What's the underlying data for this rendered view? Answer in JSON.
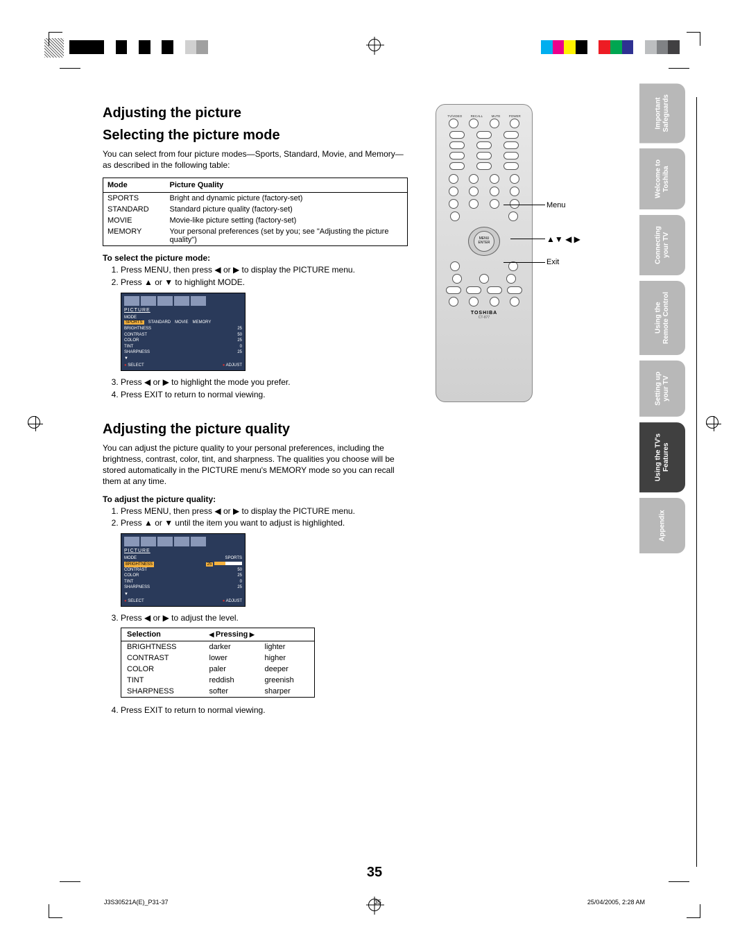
{
  "page_number": "35",
  "footer": {
    "left": "J3S30521A(E)_P31-37",
    "mid": "35",
    "right": "25/04/2005, 2:28 AM"
  },
  "headings": {
    "h1a": "Adjusting the picture",
    "h1b": "Selecting the picture mode",
    "h2": "Adjusting the picture quality"
  },
  "intro1": "You can select from four picture modes—Sports, Standard, Movie, and Memory—as described in the following table:",
  "mode_table": {
    "headers": [
      "Mode",
      "Picture Quality"
    ],
    "rows": [
      [
        "SPORTS",
        "Bright and dynamic picture (factory-set)"
      ],
      [
        "STANDARD",
        "Standard picture quality (factory-set)"
      ],
      [
        "MOVIE",
        "Movie-like picture setting (factory-set)"
      ],
      [
        "MEMORY",
        "Your personal preferences (set by you; see \"Adjusting the picture quality\")"
      ]
    ]
  },
  "sub1": "To select the picture mode:",
  "steps1": [
    "Press MENU, then press ◀ or ▶ to display the PICTURE menu.",
    "Press ▲ or ▼ to highlight MODE.",
    "Press ◀ or ▶ to highlight the mode you prefer.",
    "Press EXIT to return to normal viewing."
  ],
  "osd1": {
    "title": "PICTURE",
    "modes": [
      "SPORTS",
      "STANDARD",
      "MOVIE",
      "MEMORY"
    ],
    "rows": [
      [
        "MODE",
        ""
      ],
      [
        "BRIGHTNESS",
        "25"
      ],
      [
        "CONTRAST",
        "50"
      ],
      [
        "COLOR",
        "25"
      ],
      [
        "TINT",
        "0"
      ],
      [
        "SHARPNESS",
        "25"
      ]
    ],
    "foot": [
      "SELECT",
      "ADJUST"
    ]
  },
  "intro2": "You can adjust the picture quality to your personal preferences, including the brightness, contrast, color, tint, and sharpness. The qualities you choose will be stored automatically in the PICTURE menu's MEMORY mode so you can recall them at any time.",
  "sub2": "To adjust the picture quality:",
  "steps2": [
    "Press MENU, then press ◀ or ▶ to display the PICTURE menu.",
    "Press ▲ or ▼ until the item you want to adjust is highlighted.",
    "Press ◀ or ▶ to adjust the level.",
    "Press EXIT to return to normal viewing."
  ],
  "osd2": {
    "title": "PICTURE",
    "mode_value": "SPORTS",
    "rows": [
      [
        "MODE",
        "SPORTS"
      ],
      [
        "BRIGHTNESS",
        "25"
      ],
      [
        "CONTRAST",
        "50"
      ],
      [
        "COLOR",
        "25"
      ],
      [
        "TINT",
        "0"
      ],
      [
        "SHARPNESS",
        "25"
      ]
    ],
    "foot": [
      "SELECT",
      "ADJUST"
    ],
    "highlight": 1
  },
  "adjust_table": {
    "headers": [
      "Selection",
      "Pressing"
    ],
    "rows": [
      [
        "BRIGHTNESS",
        "darker",
        "lighter"
      ],
      [
        "CONTRAST",
        "lower",
        "higher"
      ],
      [
        "COLOR",
        "paler",
        "deeper"
      ],
      [
        "TINT",
        "reddish",
        "greenish"
      ],
      [
        "SHARPNESS",
        "softer",
        "sharper"
      ]
    ]
  },
  "remote": {
    "brand": "TOSHIBA",
    "model": "CT-877",
    "callouts": {
      "menu": "Menu",
      "arrows": "▲▼ ◀ ▶",
      "exit": "Exit"
    },
    "top_labels": [
      "TV/VIDEO",
      "RECALL",
      "MUTE",
      "POWER"
    ],
    "numbers": [
      "1",
      "2",
      "3",
      "4",
      "5•",
      "6",
      "7",
      "8",
      "9",
      "100",
      "0"
    ],
    "ctrl_center": "MENU ENTER CH RTN"
  },
  "tabs": [
    {
      "l1": "Important",
      "l2": "Safeguards",
      "active": false
    },
    {
      "l1": "Welcome to",
      "l2": "Toshiba",
      "active": false
    },
    {
      "l1": "Connecting",
      "l2": "your TV",
      "active": false
    },
    {
      "l1": "Using the",
      "l2": "Remote Control",
      "active": false
    },
    {
      "l1": "Setting up",
      "l2": "your TV",
      "active": false
    },
    {
      "l1": "Using the TV's",
      "l2": "Features",
      "active": true
    },
    {
      "l1": "Appendix",
      "l2": "",
      "active": false
    }
  ],
  "reg_colors_left": [
    "#000",
    "#000",
    "#000",
    "#fff",
    "#000",
    "#fff",
    "#000",
    "#fff",
    "#000",
    "#fff",
    "#d0d0d0",
    "#a0a0a0"
  ],
  "reg_colors_right": [
    "#00aeef",
    "#ec008c",
    "#fff200",
    "#000",
    "#fff",
    "#ed1c24",
    "#00a651",
    "#2e3192",
    "#fff",
    "#bcbec0",
    "#808285",
    "#414042"
  ]
}
